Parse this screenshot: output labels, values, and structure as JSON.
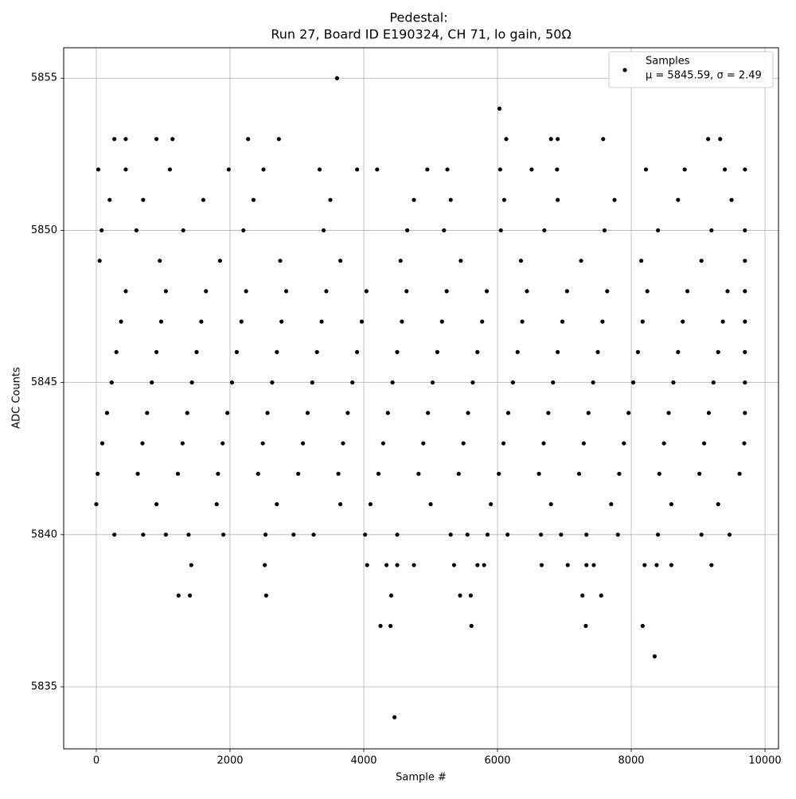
{
  "chart_data": {
    "type": "scatter",
    "title": "Pedestal:",
    "subtitle": "Run 27, Board ID E190324, CH 71, lo gain, 50Ω",
    "x_label": "Sample #",
    "y_label": "ADC Counts",
    "xlim": [
      -488,
      10202
    ],
    "ylim": [
      5832.96,
      5856.0
    ],
    "xticks": [
      0,
      2000,
      4000,
      6000,
      8000,
      10000
    ],
    "yticks": [
      5835,
      5840,
      5845,
      5850,
      5855
    ],
    "grid": true,
    "legend": "upper right",
    "legend_note": "μ = 5845.59, σ = 2.49",
    "series": [
      {
        "name": "Samples",
        "color": "#000000",
        "x": [
          20,
          620,
          1220,
          1820,
          2420,
          3020,
          3620,
          4220,
          4820,
          5420,
          6020,
          6620,
          7220,
          7820,
          8420,
          9020,
          9620,
          90,
          690,
          1290,
          1890,
          2490,
          3090,
          3690,
          4290,
          4890,
          5490,
          6090,
          6690,
          7290,
          7890,
          8490,
          9090,
          9690,
          160,
          760,
          1360,
          1960,
          2560,
          3160,
          3760,
          4360,
          4960,
          5560,
          6160,
          6760,
          7360,
          7960,
          8560,
          9160,
          9700,
          230,
          830,
          1430,
          2030,
          2630,
          3230,
          3830,
          4430,
          5030,
          5630,
          6230,
          6830,
          7430,
          8030,
          8630,
          9230,
          9700,
          300,
          900,
          1500,
          2100,
          2700,
          3300,
          3900,
          4500,
          5100,
          5700,
          6300,
          6900,
          7500,
          8100,
          8700,
          9300,
          9700,
          370,
          970,
          1570,
          2170,
          2770,
          3370,
          3970,
          4570,
          5170,
          5770,
          6370,
          6970,
          7570,
          8170,
          8770,
          9370,
          9700,
          440,
          1040,
          1640,
          2240,
          2840,
          3440,
          4040,
          4640,
          5240,
          5840,
          6440,
          7040,
          7640,
          8240,
          8840,
          9440,
          9700,
          0,
          900,
          1800,
          2700,
          3650,
          4100,
          5000,
          5900,
          6800,
          7700,
          8600,
          9300,
          50,
          950,
          1850,
          2750,
          3650,
          4550,
          5450,
          6350,
          7250,
          8150,
          9050,
          9700,
          80,
          600,
          1300,
          2200,
          3400,
          4650,
          5200,
          6050,
          6700,
          7600,
          8400,
          9200,
          9700,
          200,
          700,
          1600,
          2350,
          3500,
          4750,
          5300,
          6100,
          6900,
          7750,
          8700,
          9500,
          30,
          440,
          1100,
          1980,
          2500,
          3340,
          3900,
          4200,
          4950,
          5250,
          6040,
          6510,
          6890,
          8220,
          8800,
          9400,
          9700,
          270,
          700,
          1040,
          1380,
          1900,
          2530,
          2950,
          3250,
          4020,
          4500,
          5300,
          5550,
          5850,
          6150,
          6650,
          6950,
          7330,
          7800,
          8400,
          9050,
          9470,
          270,
          440,
          900,
          1140,
          2270,
          2730,
          6130,
          6800,
          6900,
          7580,
          9150,
          9330,
          1420,
          2520,
          4050,
          4340,
          4500,
          4750,
          5350,
          5700,
          5800,
          6660,
          7050,
          7330,
          7440,
          8200,
          8380,
          8600,
          9200,
          1230,
          1400,
          2540,
          4410,
          5440,
          5600,
          7270,
          7550,
          5610,
          7320,
          4250,
          4400,
          8170,
          3600,
          6030,
          4460,
          8350
        ],
        "values": [
          5842,
          5842,
          5842,
          5842,
          5842,
          5842,
          5842,
          5842,
          5842,
          5842,
          5842,
          5842,
          5842,
          5842,
          5842,
          5842,
          5842,
          5843,
          5843,
          5843,
          5843,
          5843,
          5843,
          5843,
          5843,
          5843,
          5843,
          5843,
          5843,
          5843,
          5843,
          5843,
          5843,
          5843,
          5844,
          5844,
          5844,
          5844,
          5844,
          5844,
          5844,
          5844,
          5844,
          5844,
          5844,
          5844,
          5844,
          5844,
          5844,
          5844,
          5844,
          5845,
          5845,
          5845,
          5845,
          5845,
          5845,
          5845,
          5845,
          5845,
          5845,
          5845,
          5845,
          5845,
          5845,
          5845,
          5845,
          5845,
          5846,
          5846,
          5846,
          5846,
          5846,
          5846,
          5846,
          5846,
          5846,
          5846,
          5846,
          5846,
          5846,
          5846,
          5846,
          5846,
          5846,
          5847,
          5847,
          5847,
          5847,
          5847,
          5847,
          5847,
          5847,
          5847,
          5847,
          5847,
          5847,
          5847,
          5847,
          5847,
          5847,
          5847,
          5848,
          5848,
          5848,
          5848,
          5848,
          5848,
          5848,
          5848,
          5848,
          5848,
          5848,
          5848,
          5848,
          5848,
          5848,
          5848,
          5848,
          5841,
          5841,
          5841,
          5841,
          5841,
          5841,
          5841,
          5841,
          5841,
          5841,
          5841,
          5841,
          5849,
          5849,
          5849,
          5849,
          5849,
          5849,
          5849,
          5849,
          5849,
          5849,
          5849,
          5849,
          5850,
          5850,
          5850,
          5850,
          5850,
          5850,
          5850,
          5850,
          5850,
          5850,
          5850,
          5850,
          5850,
          5851,
          5851,
          5851,
          5851,
          5851,
          5851,
          5851,
          5851,
          5851,
          5851,
          5851,
          5851,
          5852,
          5852,
          5852,
          5852,
          5852,
          5852,
          5852,
          5852,
          5852,
          5852,
          5852,
          5852,
          5852,
          5852,
          5852,
          5852,
          5852,
          5840,
          5840,
          5840,
          5840,
          5840,
          5840,
          5840,
          5840,
          5840,
          5840,
          5840,
          5840,
          5840,
          5840,
          5840,
          5840,
          5840,
          5840,
          5840,
          5840,
          5840,
          5853,
          5853,
          5853,
          5853,
          5853,
          5853,
          5853,
          5853,
          5853,
          5853,
          5853,
          5853,
          5839,
          5839,
          5839,
          5839,
          5839,
          5839,
          5839,
          5839,
          5839,
          5839,
          5839,
          5839,
          5839,
          5839,
          5839,
          5839,
          5839,
          5838,
          5838,
          5838,
          5838,
          5838,
          5838,
          5838,
          5838,
          5837,
          5837,
          5837,
          5837,
          5837,
          5855,
          5854,
          5834,
          5836
        ]
      }
    ]
  }
}
